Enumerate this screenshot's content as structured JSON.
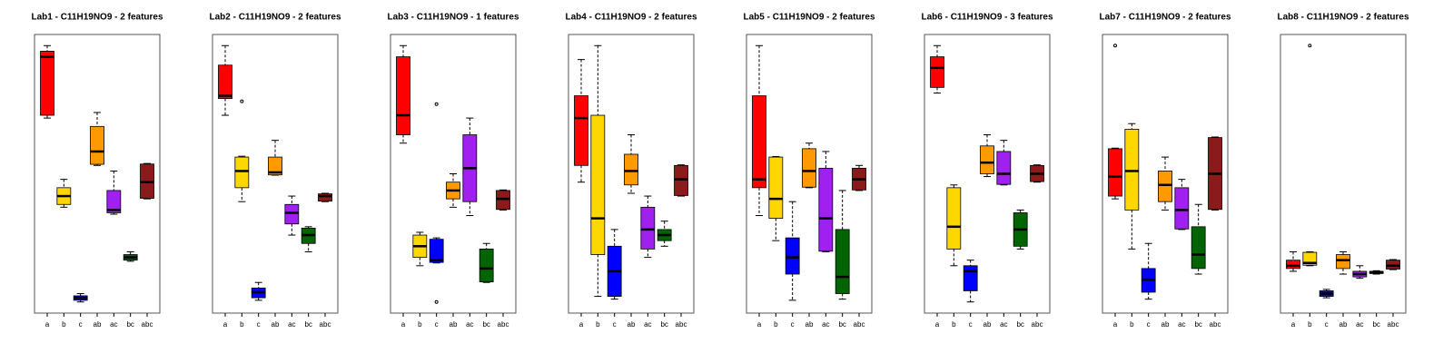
{
  "chart_data": [
    {
      "type": "boxplot",
      "title": "Lab1 - C11H19NO9 - 2 features",
      "categories": [
        "a",
        "b",
        "c",
        "ab",
        "ac",
        "bc",
        "abc"
      ],
      "colors": [
        "#ff0000",
        "#ffd700",
        "#0000ff",
        "#ff9900",
        "#a020f0",
        "#006400",
        "#8b1a1a"
      ],
      "ylim": [
        0,
        100
      ],
      "boxes": [
        {
          "min": 70,
          "q1": 71,
          "median": 92,
          "q3": 94,
          "max": 96
        },
        {
          "min": 38,
          "q1": 39,
          "median": 42,
          "q3": 45,
          "max": 48
        },
        {
          "min": 4,
          "q1": 4.6,
          "median": 5.5,
          "q3": 6.2,
          "max": 7
        },
        {
          "min": 53,
          "q1": 53.4,
          "median": 58,
          "q3": 67,
          "max": 72
        },
        {
          "min": 35.5,
          "q1": 36,
          "median": 37,
          "q3": 44,
          "max": 51
        },
        {
          "min": 18.6,
          "q1": 19,
          "median": 20,
          "q3": 21,
          "max": 22
        },
        {
          "min": 41,
          "q1": 41.2,
          "median": 47,
          "q3": 53.5,
          "max": 53.7
        }
      ]
    },
    {
      "type": "boxplot",
      "title": "Lab2 - C11H19NO9 - 2 features",
      "categories": [
        "a",
        "b",
        "c",
        "ab",
        "ac",
        "bc",
        "abc"
      ],
      "colors": [
        "#ff0000",
        "#ffd700",
        "#0000ff",
        "#ff9900",
        "#a020f0",
        "#006400",
        "#8b1a1a"
      ],
      "ylim": [
        0,
        100
      ],
      "boxes": [
        {
          "min": 71,
          "q1": 77,
          "median": 78,
          "q3": 89,
          "max": 96
        },
        {
          "min": 40,
          "q1": 45,
          "median": 51,
          "q3": 56,
          "max": 56.3,
          "outliers": [
            76
          ]
        },
        {
          "min": 4.6,
          "q1": 5.5,
          "median": 7.5,
          "q3": 9,
          "max": 11
        },
        {
          "min": 49.5,
          "q1": 49.6,
          "median": 50.5,
          "q3": 56,
          "max": 62
        },
        {
          "min": 28,
          "q1": 32,
          "median": 36,
          "q3": 39,
          "max": 42
        },
        {
          "min": 22,
          "q1": 25,
          "median": 28,
          "q3": 30.5,
          "max": 31
        },
        {
          "min": 40,
          "q1": 40.2,
          "median": 42,
          "q3": 42.8,
          "max": 43
        }
      ]
    },
    {
      "type": "boxplot",
      "title": "Lab3 - C11H19NO9 - 1 features",
      "categories": [
        "a",
        "b",
        "c",
        "ab",
        "ac",
        "bc",
        "abc"
      ],
      "colors": [
        "#ff0000",
        "#ffd700",
        "#0000ff",
        "#ff9900",
        "#a020f0",
        "#006400",
        "#8b1a1a"
      ],
      "ylim": [
        0,
        100
      ],
      "boxes": [
        {
          "min": 61,
          "q1": 64,
          "median": 71,
          "q3": 92,
          "max": 96
        },
        {
          "min": 17,
          "q1": 20,
          "median": 24,
          "q3": 28,
          "max": 29
        },
        {
          "min": 18,
          "q1": 18.2,
          "median": 19,
          "q3": 26.5,
          "max": 27,
          "outliers": [
            75,
            4
          ]
        },
        {
          "min": 38,
          "q1": 41,
          "median": 44,
          "q3": 47,
          "max": 50
        },
        {
          "min": 35,
          "q1": 40,
          "median": 52,
          "q3": 64,
          "max": 70
        },
        {
          "min": 11,
          "q1": 11.2,
          "median": 16,
          "q3": 23,
          "max": 25
        },
        {
          "min": 37,
          "q1": 37.2,
          "median": 41,
          "q3": 44,
          "max": 44.2
        }
      ]
    },
    {
      "type": "boxplot",
      "title": "Lab4 - C11H19NO9 - 2 features",
      "categories": [
        "a",
        "b",
        "c",
        "ab",
        "ac",
        "bc",
        "abc"
      ],
      "colors": [
        "#ff0000",
        "#ffd700",
        "#0000ff",
        "#ff9900",
        "#a020f0",
        "#006400",
        "#8b1a1a"
      ],
      "ylim": [
        0,
        100
      ],
      "boxes": [
        {
          "min": 47,
          "q1": 53,
          "median": 70,
          "q3": 78,
          "max": 91
        },
        {
          "min": 6,
          "q1": 21,
          "median": 34,
          "q3": 71,
          "max": 96
        },
        {
          "min": 5,
          "q1": 6,
          "median": 15,
          "q3": 24,
          "max": 30
        },
        {
          "min": 43,
          "q1": 46,
          "median": 51,
          "q3": 57,
          "max": 64
        },
        {
          "min": 20,
          "q1": 23,
          "median": 30,
          "q3": 38,
          "max": 42
        },
        {
          "min": 24,
          "q1": 26,
          "median": 28,
          "q3": 30,
          "max": 33
        },
        {
          "min": 42,
          "q1": 42.2,
          "median": 48,
          "q3": 53,
          "max": 53.2
        }
      ]
    },
    {
      "type": "boxplot",
      "title": "Lab5 - C11H19NO9 - 2 features",
      "categories": [
        "a",
        "b",
        "c",
        "ab",
        "ac",
        "bc",
        "abc"
      ],
      "colors": [
        "#ff0000",
        "#ffd700",
        "#0000ff",
        "#ff9900",
        "#a020f0",
        "#006400",
        "#8b1a1a"
      ],
      "ylim": [
        0,
        100
      ],
      "boxes": [
        {
          "min": 35,
          "q1": 45,
          "median": 48,
          "q3": 78,
          "max": 96
        },
        {
          "min": 26,
          "q1": 34,
          "median": 41,
          "q3": 56,
          "max": 56.2
        },
        {
          "min": 4.6,
          "q1": 14,
          "median": 20,
          "q3": 27,
          "max": 40
        },
        {
          "min": 45,
          "q1": 45.2,
          "median": 51,
          "q3": 59,
          "max": 61
        },
        {
          "min": 22,
          "q1": 22.2,
          "median": 34,
          "q3": 52,
          "max": 58
        },
        {
          "min": 5,
          "q1": 7,
          "median": 13,
          "q3": 30,
          "max": 44
        },
        {
          "min": 44,
          "q1": 44.2,
          "median": 48,
          "q3": 52,
          "max": 53
        }
      ]
    },
    {
      "type": "boxplot",
      "title": "Lab6 - C11H19NO9 - 3 features",
      "categories": [
        "a",
        "b",
        "c",
        "ab",
        "ac",
        "bc",
        "abc"
      ],
      "colors": [
        "#ff0000",
        "#ffd700",
        "#0000ff",
        "#ff9900",
        "#a020f0",
        "#006400",
        "#8b1a1a"
      ],
      "ylim": [
        0,
        100
      ],
      "boxes": [
        {
          "min": 79,
          "q1": 81,
          "median": 88,
          "q3": 92,
          "max": 96
        },
        {
          "min": 17,
          "q1": 23,
          "median": 31,
          "q3": 45,
          "max": 46
        },
        {
          "min": 4,
          "q1": 8,
          "median": 15,
          "q3": 17,
          "max": 19
        },
        {
          "min": 49,
          "q1": 50,
          "median": 54,
          "q3": 60,
          "max": 64
        },
        {
          "min": 46,
          "q1": 46.2,
          "median": 50,
          "q3": 58,
          "max": 62
        },
        {
          "min": 23,
          "q1": 24,
          "median": 30,
          "q3": 36,
          "max": 37
        },
        {
          "min": 47,
          "q1": 47.2,
          "median": 50,
          "q3": 53,
          "max": 53.2
        }
      ]
    },
    {
      "type": "boxplot",
      "title": "Lab7 - C11H19NO9 - 2 features",
      "categories": [
        "a",
        "b",
        "c",
        "ab",
        "ac",
        "bc",
        "abc"
      ],
      "colors": [
        "#ff0000",
        "#ffd700",
        "#0000ff",
        "#ff9900",
        "#a020f0",
        "#006400",
        "#8b1a1a"
      ],
      "ylim": [
        0,
        100
      ],
      "boxes": [
        {
          "min": 41,
          "q1": 42,
          "median": 49,
          "q3": 59,
          "max": 59.2,
          "outliers": [
            96
          ]
        },
        {
          "min": 23,
          "q1": 37,
          "median": 51,
          "q3": 66,
          "max": 68
        },
        {
          "min": 5,
          "q1": 7.5,
          "median": 12,
          "q3": 16,
          "max": 25
        },
        {
          "min": 37,
          "q1": 40,
          "median": 46,
          "q3": 51,
          "max": 56
        },
        {
          "min": 30,
          "q1": 30.2,
          "median": 37,
          "q3": 45,
          "max": 48
        },
        {
          "min": 14,
          "q1": 16,
          "median": 21,
          "q3": 31,
          "max": 39
        },
        {
          "min": 37,
          "q1": 37.2,
          "median": 50,
          "q3": 63,
          "max": 63.2
        }
      ]
    },
    {
      "type": "boxplot",
      "title": "Lab8 - C11H19NO9 - 2 features",
      "categories": [
        "a",
        "b",
        "c",
        "ab",
        "ac",
        "bc",
        "abc"
      ],
      "colors": [
        "#ff0000",
        "#ffd700",
        "#0000ff",
        "#ff9900",
        "#a020f0",
        "#006400",
        "#8b1a1a"
      ],
      "ylim": [
        0,
        100
      ],
      "boxes": [
        {
          "min": 15,
          "q1": 16,
          "median": 17,
          "q3": 19,
          "max": 22
        },
        {
          "min": 17,
          "q1": 17.2,
          "median": 18,
          "q3": 21.8,
          "max": 22,
          "outliers": [
            96
          ]
        },
        {
          "min": 5.5,
          "q1": 6,
          "median": 7,
          "q3": 8,
          "max": 8.5
        },
        {
          "min": 14,
          "q1": 16,
          "median": 19,
          "q3": 21,
          "max": 22
        },
        {
          "min": 12.5,
          "q1": 13,
          "median": 14,
          "q3": 15,
          "max": 17
        },
        {
          "min": 14,
          "q1": 14.2,
          "median": 14.6,
          "q3": 15,
          "max": 15.2
        },
        {
          "min": 15.6,
          "q1": 15.8,
          "median": 17,
          "q3": 19,
          "max": 19.2
        }
      ]
    }
  ]
}
